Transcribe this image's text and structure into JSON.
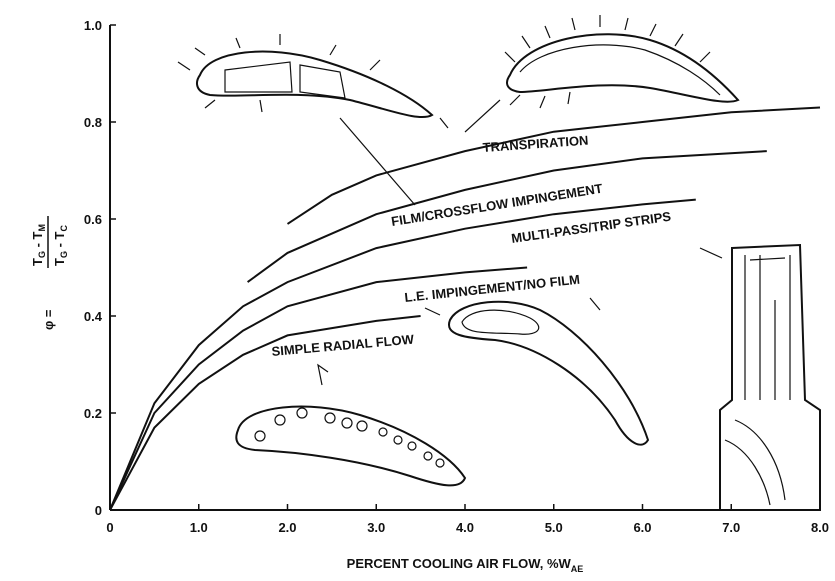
{
  "chart_data": {
    "type": "line",
    "xlabel": {
      "text": "PERCENT COOLING AIR FLOW, %W",
      "subscript": "AE"
    },
    "ylabel": {
      "lhs": "φ =",
      "numerator": [
        {
          "t": "T",
          "sub": "G"
        },
        {
          "t": " - T",
          "sub": "M"
        }
      ],
      "denominator": [
        {
          "t": "T",
          "sub": "G"
        },
        {
          "t": " - T",
          "sub": "C"
        }
      ]
    },
    "xlim": [
      0,
      8.0
    ],
    "ylim": [
      0,
      1.0
    ],
    "xticks": [
      0,
      {
        "value": 1,
        "label": "1.0"
      },
      {
        "value": 2,
        "label": "2.0"
      },
      {
        "value": 3,
        "label": "3.0"
      },
      {
        "value": 4,
        "label": "4.0"
      },
      {
        "value": 5,
        "label": "5.0"
      },
      {
        "value": 6,
        "label": "6.0"
      },
      {
        "value": 7,
        "label": "7.0"
      },
      {
        "value": 8,
        "label": "8.0"
      }
    ],
    "yticks": [
      0,
      0.2,
      0.4,
      0.6,
      0.8,
      {
        "value": 1,
        "label": "1.0"
      }
    ],
    "grid": false,
    "series": [
      {
        "name": "TRANSPIRATION",
        "color": "#111111",
        "x": [
          2.0,
          2.5,
          3.0,
          4.0,
          5.0,
          6.0,
          7.0,
          8.0
        ],
        "values": [
          0.59,
          0.65,
          0.69,
          0.74,
          0.78,
          0.8,
          0.82,
          0.83
        ]
      },
      {
        "name": "FILM/CROSSFLOW IMPINGEMENT",
        "color": "#111111",
        "x": [
          1.55,
          2.0,
          3.0,
          4.0,
          5.0,
          6.0,
          7.4
        ],
        "values": [
          0.47,
          0.53,
          0.61,
          0.66,
          0.7,
          0.725,
          0.74
        ]
      },
      {
        "name": "MULTI-PASS/TRIP STRIPS",
        "color": "#111111",
        "x": [
          0,
          0.5,
          1.0,
          1.5,
          2.0,
          3.0,
          4.0,
          5.0,
          6.0,
          6.6
        ],
        "values": [
          0,
          0.22,
          0.34,
          0.42,
          0.47,
          0.54,
          0.58,
          0.61,
          0.63,
          0.64
        ]
      },
      {
        "name": "L.E. IMPINGEMENT/NO FILM",
        "color": "#111111",
        "x": [
          0,
          0.5,
          1.0,
          1.5,
          2.0,
          3.0,
          4.0,
          4.7
        ],
        "values": [
          0,
          0.2,
          0.3,
          0.37,
          0.42,
          0.47,
          0.49,
          0.5
        ]
      },
      {
        "name": "SIMPLE RADIAL FLOW",
        "color": "#111111",
        "x": [
          0,
          0.5,
          1.0,
          1.5,
          2.0,
          3.0,
          3.5
        ],
        "values": [
          0,
          0.17,
          0.26,
          0.32,
          0.36,
          0.39,
          0.4
        ]
      }
    ]
  }
}
